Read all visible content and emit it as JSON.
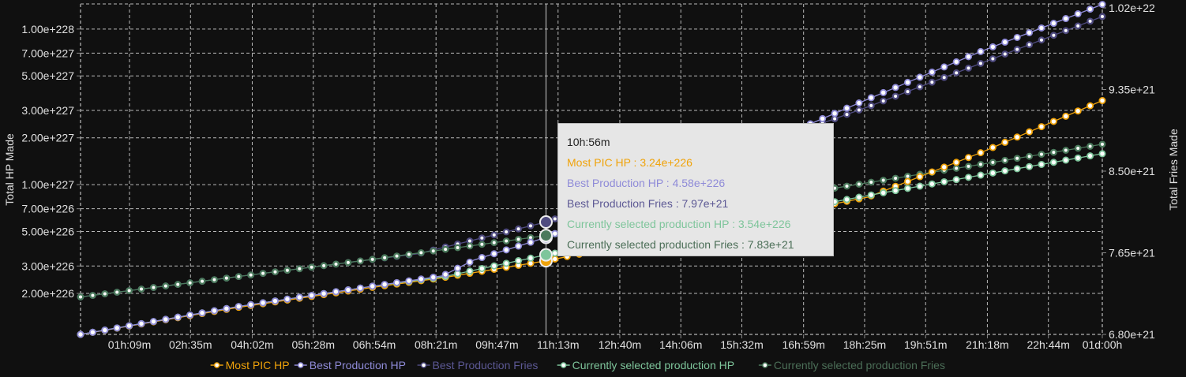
{
  "chart_data": {
    "type": "line",
    "xlabel": "",
    "x_ticks": [
      "01h:09m",
      "02h:35m",
      "04h:02m",
      "05h:28m",
      "06h:54m",
      "08h:21m",
      "09h:47m",
      "11h:13m",
      "12h:40m",
      "14h:06m",
      "15h:32m",
      "16h:59m",
      "18h:25m",
      "19h:51m",
      "21h:18m",
      "22h:44m",
      "01d:00h"
    ],
    "xlim": [
      "00h:00m",
      "01d:00h"
    ],
    "y_left": {
      "label": "Total HP Made",
      "scale": "log",
      "ylim": [
        1.09e+226,
        1.45e+228
      ],
      "ticks": [
        "2.00e+226",
        "3.00e+226",
        "5.00e+226",
        "7.00e+226",
        "1.00e+227",
        "2.00e+227",
        "3.00e+227",
        "5.00e+227",
        "7.00e+227",
        "1.00e+228"
      ]
    },
    "y_right": {
      "label": "Total Fries Made",
      "scale": "linear",
      "ylim": [
        6.8e+21,
        1.02e+22
      ],
      "ticks": [
        "6.80e+21",
        "7.65e+21",
        "8.50e+21",
        "9.35e+21",
        "1.02e+22"
      ]
    },
    "grid": true,
    "legend_placement": "bottom",
    "series": [
      {
        "name": "Most PIC HP",
        "axis": "left",
        "color": "#f0a30a",
        "text_color": "#f0a30a",
        "points": [
          [
            "00h:00m",
            1.09e+226
          ],
          [
            "03h:40m",
            1.62e+226
          ],
          [
            "06h:50m",
            2.18e+226
          ],
          [
            "08h:30m",
            2.52e+226
          ],
          [
            "10h:56m",
            3.24e+226
          ],
          [
            "18h:30m",
            8.32e+226
          ],
          [
            "21h:08m",
            1.6e+227
          ],
          [
            "01d:00h",
            3.47e+227
          ]
        ]
      },
      {
        "name": "Best Production HP",
        "axis": "left",
        "color": "#8f8bd8",
        "text_color": "#8f8bd8",
        "points": [
          [
            "00h:00m",
            1.09e+226
          ],
          [
            "03h:40m",
            1.64e+226
          ],
          [
            "06h:50m",
            2.22e+226
          ],
          [
            "08h:30m",
            2.59e+226
          ],
          [
            "09h:14m",
            3.27e+226
          ],
          [
            "10h:56m",
            4.58e+226
          ],
          [
            "18h:30m",
            3.55e+227
          ],
          [
            "21h:08m",
            7.15e+227
          ],
          [
            "01d:00h",
            1.44e+228
          ]
        ]
      },
      {
        "name": "Best Production Fries",
        "axis": "right",
        "color": "#4f4b80",
        "text_color": "#5c5894",
        "points": [
          [
            "00h:00m",
            7.19e+21
          ],
          [
            "03h:40m",
            7.4e+21
          ],
          [
            "06h:40m",
            7.57e+21
          ],
          [
            "07h:56m",
            7.64e+21
          ],
          [
            "10h:56m",
            7.97e+21
          ],
          [
            "18h:30m",
            9.17e+21
          ],
          [
            "21h:08m",
            9.62e+21
          ],
          [
            "01d:00h",
            1.011e+22
          ]
        ]
      },
      {
        "name": "Currently selected production HP",
        "axis": "left",
        "color": "#7ec59b",
        "text_color": "#7ec59b",
        "points": [
          [
            "00h:00m",
            1.09e+226
          ],
          [
            "03h:40m",
            1.64e+226
          ],
          [
            "06h:50m",
            2.22e+226
          ],
          [
            "08h:30m",
            2.55e+226
          ],
          [
            "10h:56m",
            3.54e+226
          ],
          [
            "18h:30m",
            8.51e+226
          ],
          [
            "21h:08m",
            1.15e+227
          ],
          [
            "01d:00h",
            1.58e+227
          ]
        ]
      },
      {
        "name": "Currently selected production Fries",
        "axis": "right",
        "color": "#4b7a5c",
        "text_color": "#4b6e57",
        "points": [
          [
            "00h:00m",
            7.19e+21
          ],
          [
            "03h:40m",
            7.4e+21
          ],
          [
            "06h:40m",
            7.57e+21
          ],
          [
            "10h:56m",
            7.83e+21
          ],
          [
            "18h:30m",
            8.38e+21
          ],
          [
            "21h:08m",
            8.57e+21
          ],
          [
            "01d:00h",
            8.78e+21
          ]
        ]
      }
    ],
    "crosshair_time": "10h:56m",
    "tooltip": {
      "title": "10h:56m",
      "rows": [
        "Most PIC HP : 3.24e+226",
        "Best Production HP : 4.58e+226",
        "Best Production Fries : 7.97e+21",
        "Currently selected production HP : 3.54e+226",
        "Currently selected production Fries : 7.83e+21"
      ],
      "values": [
        3.24e+226,
        4.58e+226,
        7.97e+21,
        3.54e+226,
        7.83e+21
      ]
    }
  }
}
